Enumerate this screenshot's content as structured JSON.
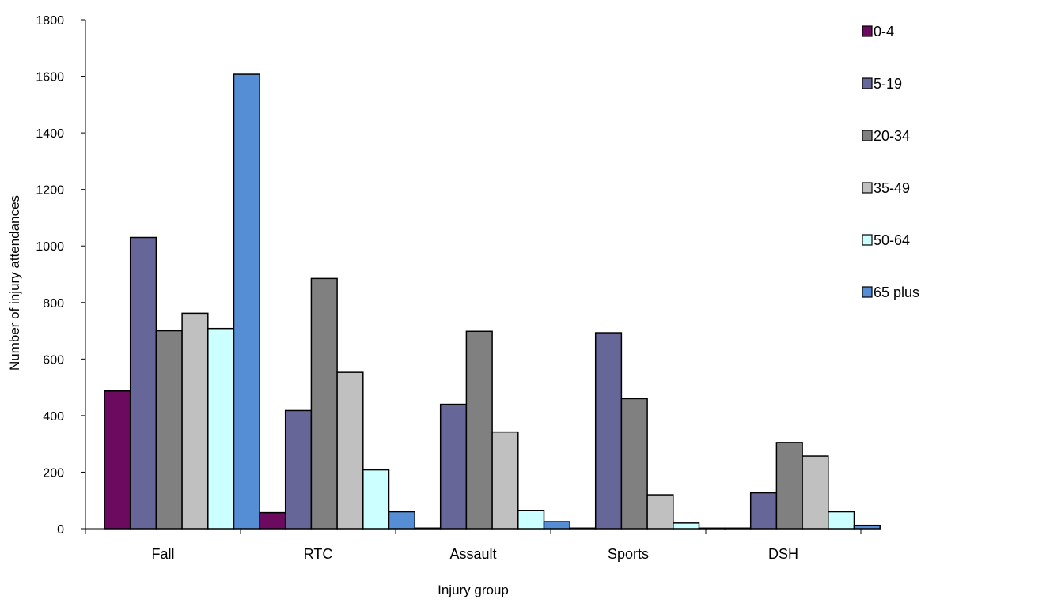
{
  "chart_data": {
    "type": "bar",
    "title": "",
    "xlabel": "Injury group",
    "ylabel": "Number of injury attendances",
    "categories": [
      "Fall",
      "RTC",
      "Assault",
      "Sports",
      "DSH"
    ],
    "ylim": [
      0,
      1800
    ],
    "yticks": [
      0,
      200,
      400,
      600,
      800,
      1000,
      1200,
      1400,
      1600,
      1800
    ],
    "grid": false,
    "legend_position": "right",
    "series": [
      {
        "name": "0-4",
        "color": "#6b0a5e",
        "values": [
          487,
          57,
          2,
          2,
          2
        ]
      },
      {
        "name": "5-19",
        "color": "#666699",
        "values": [
          1030,
          418,
          440,
          693,
          127
        ]
      },
      {
        "name": "20-34",
        "color": "#808080",
        "values": [
          700,
          885,
          698,
          460,
          305
        ]
      },
      {
        "name": "35-49",
        "color": "#c0c0c0",
        "values": [
          762,
          553,
          342,
          120,
          257
        ]
      },
      {
        "name": "50-64",
        "color": "#ccffff",
        "values": [
          708,
          208,
          65,
          20,
          60
        ]
      },
      {
        "name": "65 plus",
        "color": "#558ed5",
        "values": [
          1607,
          60,
          25,
          2,
          12
        ]
      }
    ]
  }
}
